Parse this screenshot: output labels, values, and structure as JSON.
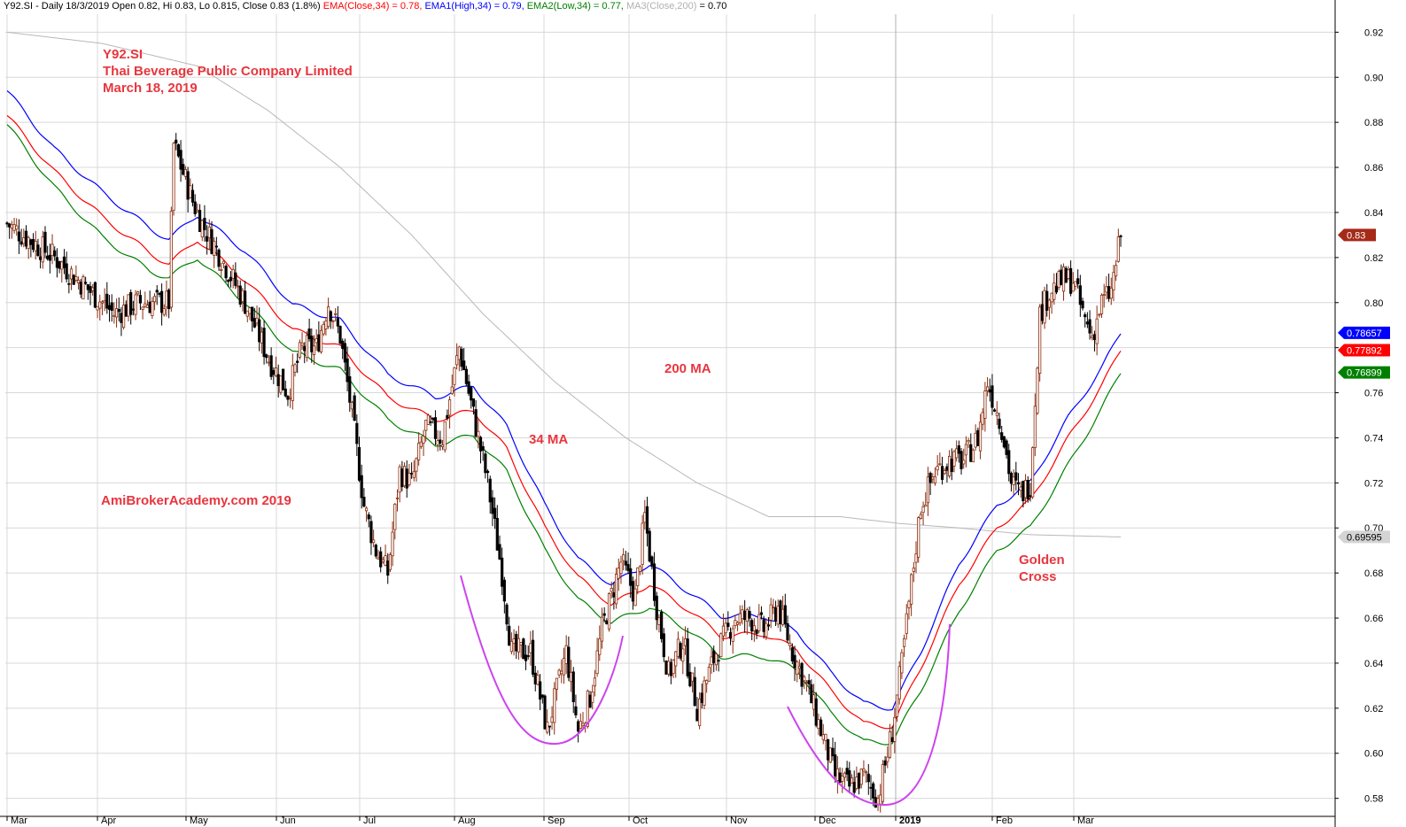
{
  "header": {
    "symbol_info": "Y92.SI - Daily 18/3/2019 Open 0.82, Hi 0.83, Lo 0.815, Close 0.83 (1.8%)",
    "ema_close": "EMA(Close,34) = 0.78,",
    "ema_high": "EMA1(High,34) = 0.79,",
    "ema_low": "EMA2(Low,34) = 0.77,",
    "ma_close_label": "MA3(Close,200)",
    "ma_close_value": "= 0.70"
  },
  "annotations": {
    "ticker": "Y92.SI",
    "company": "Thai Beverage Public Company Limited",
    "date": "March 18, 2019",
    "watermark": "AmiBrokerAcademy.com  2019",
    "ma200": "200 MA",
    "ma34": "34 MA",
    "golden_cross_1": "Golden",
    "golden_cross_2": "Cross"
  },
  "colors": {
    "up_candle": "#8b2c0d",
    "down_candle": "#000000",
    "ema_close": "#ff0000",
    "ema_high": "#0000ff",
    "ema_low": "#008000",
    "ma200": "#b8b8b8",
    "grid": "#d8d8d8",
    "annotation": "#e8363e",
    "curve": "#cc44ee"
  },
  "chart_data": {
    "type": "candlestick",
    "ylim": [
      0.572,
      0.928
    ],
    "y_ticks": [
      "0.92",
      "0.90",
      "0.88",
      "0.86",
      "0.84",
      "0.82",
      "0.80",
      "0.78",
      "0.76",
      "0.74",
      "0.72",
      "0.70",
      "0.68",
      "0.66",
      "0.64",
      "0.62",
      "0.60",
      "0.58"
    ],
    "x_months": [
      "Mar",
      "Apr",
      "May",
      "Jun",
      "Jul",
      "Aug",
      "Sep",
      "Oct",
      "Nov",
      "Dec",
      "2019",
      "Feb",
      "Mar"
    ],
    "value_badges": [
      {
        "label": "0.83",
        "value": 0.83,
        "bg": "#a52a18",
        "fg": "#ffffff"
      },
      {
        "label": "0.78657",
        "value": 0.7866,
        "bg": "#0000ff",
        "fg": "#ffffff"
      },
      {
        "label": "0.77892",
        "value": 0.7789,
        "bg": "#ff0000",
        "fg": "#ffffff"
      },
      {
        "label": "0.76899",
        "value": 0.769,
        "bg": "#008000",
        "fg": "#ffffff"
      },
      {
        "label": "0.69595",
        "value": 0.696,
        "bg": "#d4d4d4",
        "fg": "#000000"
      }
    ],
    "close_anchors": [
      [
        0,
        0.835
      ],
      [
        20,
        0.82
      ],
      [
        35,
        0.805
      ],
      [
        45,
        0.795
      ],
      [
        55,
        0.8
      ],
      [
        68,
        0.8
      ],
      [
        70,
        0.87
      ],
      [
        78,
        0.845
      ],
      [
        82,
        0.835
      ],
      [
        90,
        0.82
      ],
      [
        100,
        0.8
      ],
      [
        110,
        0.775
      ],
      [
        118,
        0.76
      ],
      [
        124,
        0.78
      ],
      [
        130,
        0.78
      ],
      [
        135,
        0.8
      ],
      [
        140,
        0.785
      ],
      [
        145,
        0.75
      ],
      [
        150,
        0.71
      ],
      [
        155,
        0.69
      ],
      [
        160,
        0.68
      ],
      [
        165,
        0.725
      ],
      [
        170,
        0.72
      ],
      [
        176,
        0.745
      ],
      [
        183,
        0.74
      ],
      [
        190,
        0.78
      ],
      [
        196,
        0.75
      ],
      [
        202,
        0.72
      ],
      [
        208,
        0.68
      ],
      [
        212,
        0.645
      ],
      [
        220,
        0.645
      ],
      [
        227,
        0.61
      ],
      [
        235,
        0.645
      ],
      [
        240,
        0.61
      ],
      [
        245,
        0.625
      ],
      [
        250,
        0.655
      ],
      [
        258,
        0.685
      ],
      [
        264,
        0.67
      ],
      [
        268,
        0.705
      ],
      [
        273,
        0.665
      ],
      [
        278,
        0.635
      ],
      [
        284,
        0.65
      ],
      [
        290,
        0.62
      ],
      [
        298,
        0.645
      ],
      [
        306,
        0.66
      ],
      [
        312,
        0.66
      ],
      [
        318,
        0.655
      ],
      [
        324,
        0.665
      ],
      [
        330,
        0.645
      ],
      [
        336,
        0.63
      ],
      [
        342,
        0.61
      ],
      [
        348,
        0.59
      ],
      [
        354,
        0.585
      ],
      [
        360,
        0.59
      ],
      [
        366,
        0.58
      ],
      [
        372,
        0.61
      ],
      [
        376,
        0.64
      ],
      [
        380,
        0.675
      ],
      [
        384,
        0.71
      ],
      [
        390,
        0.725
      ],
      [
        396,
        0.73
      ],
      [
        402,
        0.73
      ],
      [
        408,
        0.74
      ],
      [
        412,
        0.765
      ],
      [
        418,
        0.745
      ],
      [
        422,
        0.72
      ],
      [
        426,
        0.715
      ],
      [
        430,
        0.72
      ],
      [
        434,
        0.795
      ],
      [
        438,
        0.805
      ],
      [
        444,
        0.81
      ],
      [
        448,
        0.81
      ],
      [
        452,
        0.795
      ],
      [
        456,
        0.785
      ],
      [
        460,
        0.8
      ],
      [
        464,
        0.805
      ],
      [
        468,
        0.83
      ]
    ],
    "ema_close_anchors": [
      [
        0,
        0.883
      ],
      [
        20,
        0.858
      ],
      [
        40,
        0.838
      ],
      [
        60,
        0.822
      ],
      [
        68,
        0.817
      ],
      [
        80,
        0.828
      ],
      [
        100,
        0.81
      ],
      [
        120,
        0.788
      ],
      [
        140,
        0.78
      ],
      [
        160,
        0.758
      ],
      [
        180,
        0.748
      ],
      [
        196,
        0.752
      ],
      [
        210,
        0.735
      ],
      [
        226,
        0.7
      ],
      [
        240,
        0.678
      ],
      [
        254,
        0.666
      ],
      [
        270,
        0.675
      ],
      [
        286,
        0.664
      ],
      [
        300,
        0.652
      ],
      [
        318,
        0.653
      ],
      [
        332,
        0.646
      ],
      [
        346,
        0.628
      ],
      [
        360,
        0.613
      ],
      [
        372,
        0.612
      ],
      [
        384,
        0.638
      ],
      [
        400,
        0.675
      ],
      [
        416,
        0.7
      ],
      [
        430,
        0.712
      ],
      [
        446,
        0.74
      ],
      [
        460,
        0.763
      ],
      [
        468,
        0.779
      ]
    ],
    "ema_high_anchors": [
      [
        0,
        0.894
      ],
      [
        20,
        0.868
      ],
      [
        40,
        0.849
      ],
      [
        60,
        0.833
      ],
      [
        68,
        0.828
      ],
      [
        80,
        0.839
      ],
      [
        100,
        0.823
      ],
      [
        120,
        0.799
      ],
      [
        140,
        0.792
      ],
      [
        160,
        0.768
      ],
      [
        180,
        0.758
      ],
      [
        196,
        0.763
      ],
      [
        210,
        0.745
      ],
      [
        226,
        0.71
      ],
      [
        240,
        0.686
      ],
      [
        254,
        0.675
      ],
      [
        270,
        0.684
      ],
      [
        286,
        0.672
      ],
      [
        300,
        0.661
      ],
      [
        318,
        0.661
      ],
      [
        332,
        0.654
      ],
      [
        346,
        0.636
      ],
      [
        360,
        0.622
      ],
      [
        372,
        0.62
      ],
      [
        384,
        0.645
      ],
      [
        400,
        0.684
      ],
      [
        416,
        0.71
      ],
      [
        430,
        0.72
      ],
      [
        446,
        0.749
      ],
      [
        460,
        0.771
      ],
      [
        468,
        0.7866
      ]
    ],
    "ema_low_anchors": [
      [
        0,
        0.879
      ],
      [
        20,
        0.851
      ],
      [
        40,
        0.829
      ],
      [
        60,
        0.814
      ],
      [
        68,
        0.811
      ],
      [
        80,
        0.82
      ],
      [
        100,
        0.8
      ],
      [
        120,
        0.778
      ],
      [
        140,
        0.77
      ],
      [
        160,
        0.748
      ],
      [
        180,
        0.737
      ],
      [
        196,
        0.741
      ],
      [
        210,
        0.725
      ],
      [
        226,
        0.69
      ],
      [
        240,
        0.668
      ],
      [
        254,
        0.658
      ],
      [
        270,
        0.665
      ],
      [
        286,
        0.655
      ],
      [
        300,
        0.643
      ],
      [
        318,
        0.643
      ],
      [
        332,
        0.637
      ],
      [
        346,
        0.618
      ],
      [
        360,
        0.605
      ],
      [
        372,
        0.605
      ],
      [
        384,
        0.628
      ],
      [
        400,
        0.663
      ],
      [
        416,
        0.69
      ],
      [
        430,
        0.7
      ],
      [
        446,
        0.728
      ],
      [
        460,
        0.753
      ],
      [
        468,
        0.769
      ]
    ],
    "ma200_anchors": [
      [
        0,
        0.92
      ],
      [
        40,
        0.915
      ],
      [
        80,
        0.905
      ],
      [
        110,
        0.885
      ],
      [
        140,
        0.86
      ],
      [
        170,
        0.83
      ],
      [
        200,
        0.795
      ],
      [
        230,
        0.765
      ],
      [
        260,
        0.74
      ],
      [
        290,
        0.72
      ],
      [
        320,
        0.705
      ],
      [
        350,
        0.705
      ],
      [
        375,
        0.702
      ],
      [
        400,
        0.7
      ],
      [
        430,
        0.697
      ],
      [
        468,
        0.696
      ]
    ]
  }
}
